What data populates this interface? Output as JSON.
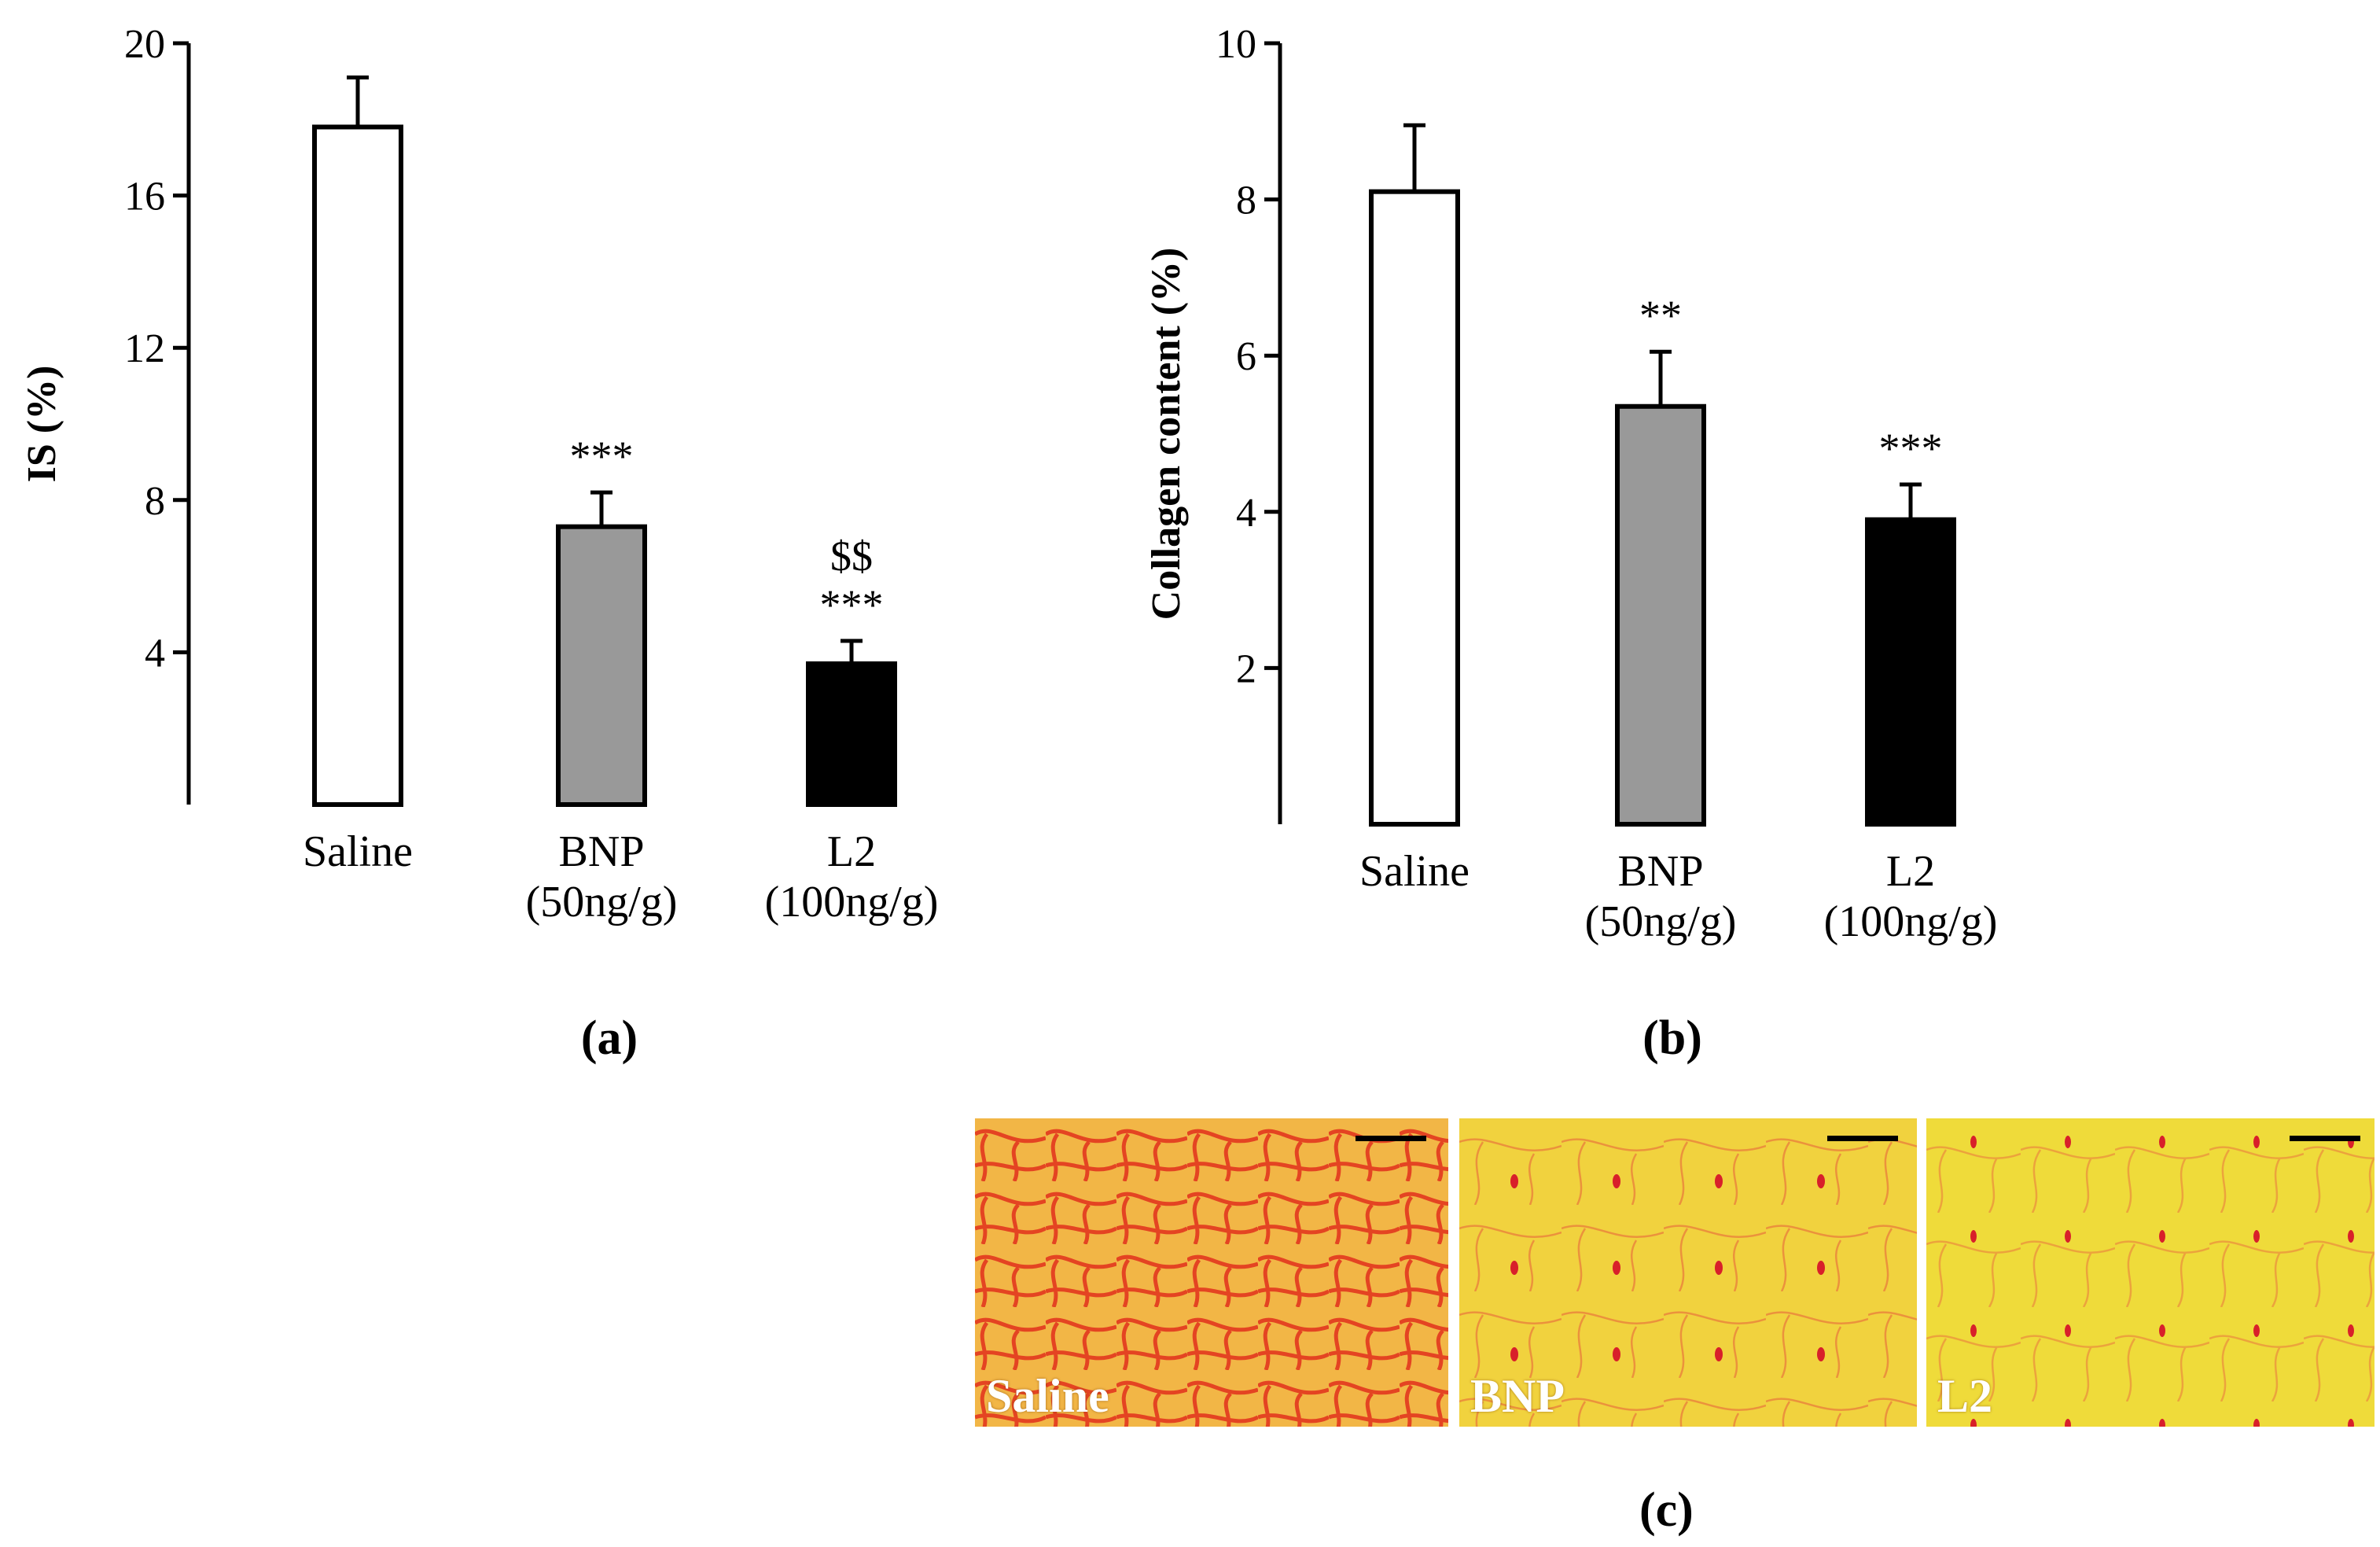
{
  "chart_data": [
    {
      "type": "bar",
      "panel_label": "(a)",
      "ylabel": "IS (%)",
      "ylim": [
        0,
        20
      ],
      "yticks": [
        4,
        8,
        12,
        16,
        20
      ],
      "categories": [
        [
          "Saline"
        ],
        [
          "BNP",
          "(50ng/g)"
        ],
        [
          "L2",
          "(100ng/g)"
        ]
      ],
      "values": [
        17.8,
        7.3,
        3.7
      ],
      "errors": [
        1.3,
        0.9,
        0.6
      ],
      "bar_colors": [
        "#ffffff",
        "#999999",
        "#000000"
      ],
      "annotations": [
        [],
        [
          "***"
        ],
        [
          "$$",
          "***"
        ]
      ]
    },
    {
      "type": "bar",
      "panel_label": "(b)",
      "ylabel": "Collagen content (%)",
      "ylim": [
        0,
        10
      ],
      "yticks": [
        2,
        4,
        6,
        8,
        10
      ],
      "categories": [
        [
          "Saline"
        ],
        [
          "BNP",
          "(50ng/g)"
        ],
        [
          "L2",
          "(100ng/g)"
        ]
      ],
      "values": [
        8.1,
        5.35,
        3.9
      ],
      "errors": [
        0.85,
        0.7,
        0.45
      ],
      "bar_colors": [
        "#ffffff",
        "#999999",
        "#000000"
      ],
      "annotations": [
        [],
        [
          "**"
        ],
        [
          "***"
        ]
      ]
    }
  ],
  "micrographs": {
    "panel_label": "(c)",
    "images": [
      {
        "label": "Saline",
        "stain": "dense"
      },
      {
        "label": "BNP",
        "stain": "sparse"
      },
      {
        "label": "L2",
        "stain": "sparse"
      }
    ]
  }
}
